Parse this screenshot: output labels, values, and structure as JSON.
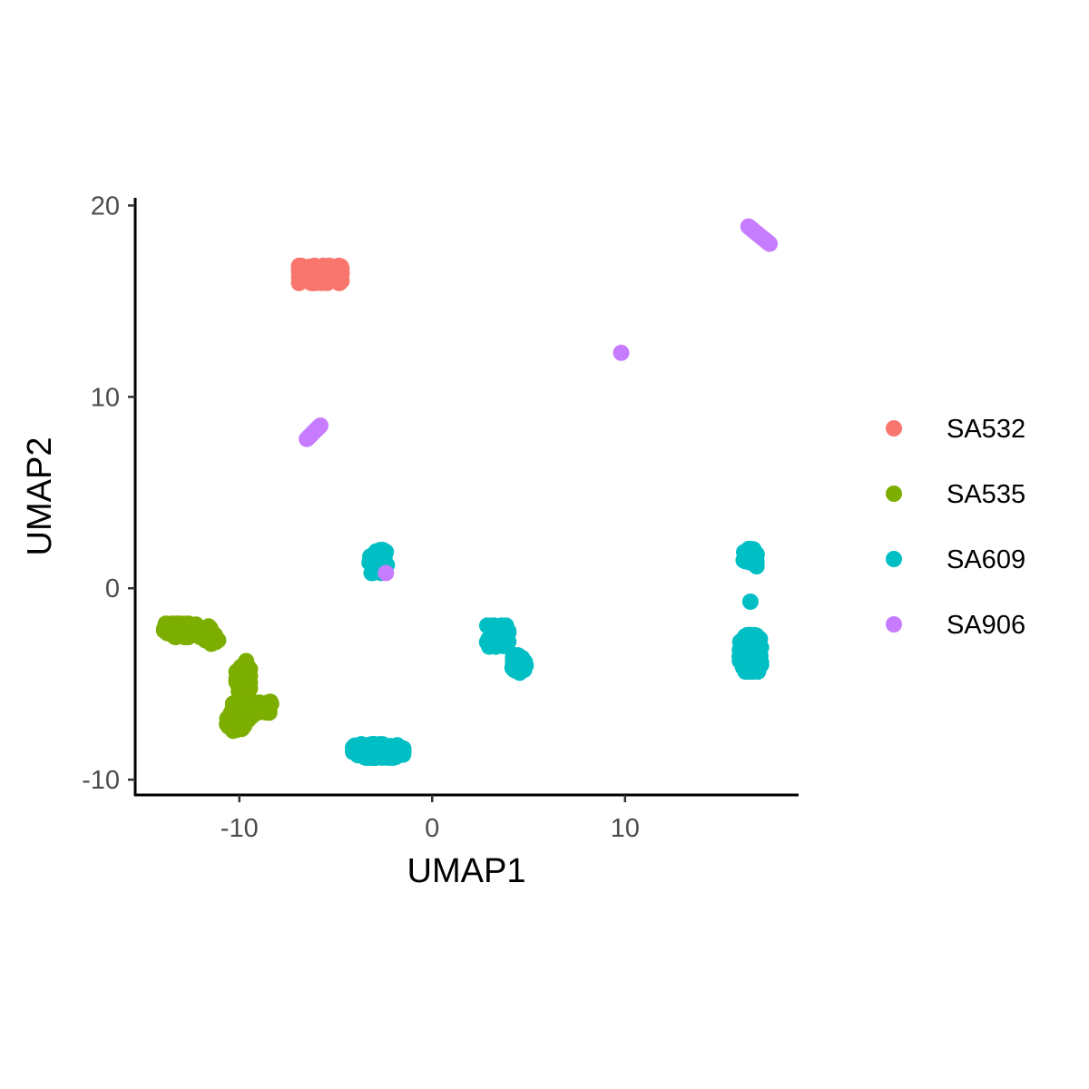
{
  "chart_data": {
    "type": "scatter",
    "title": "",
    "xlabel": "UMAP1",
    "ylabel": "UMAP2",
    "xlim": [
      -15.4,
      19
    ],
    "ylim": [
      -10.8,
      20.4
    ],
    "x_ticks": [
      -10,
      0,
      10
    ],
    "y_ticks": [
      -10,
      0,
      10,
      20
    ],
    "grid": false,
    "legend_position": "right",
    "series": [
      {
        "name": "SA532",
        "color": "#F8766D",
        "clusters": [
          {
            "x": -5.8,
            "y": 16.4,
            "sx": 1.1,
            "sy": 0.45,
            "n": 300
          }
        ]
      },
      {
        "name": "SA535",
        "color": "#7CAE00",
        "clusters": [
          {
            "x": -12.7,
            "y": -2.2,
            "sx": 1.2,
            "sy": 0.35,
            "n": 180
          },
          {
            "x": -11.5,
            "y": -2.6,
            "sx": 0.4,
            "sy": 0.3,
            "n": 40
          },
          {
            "x": -9.8,
            "y": -4.6,
            "sx": 0.35,
            "sy": 0.8,
            "n": 80
          },
          {
            "x": -9.9,
            "y": -6.5,
            "sx": 0.55,
            "sy": 0.55,
            "n": 120
          },
          {
            "x": -10.2,
            "y": -7.1,
            "sx": 0.45,
            "sy": 0.35,
            "n": 60
          },
          {
            "x": -8.8,
            "y": -6.2,
            "sx": 0.45,
            "sy": 0.3,
            "n": 50
          }
        ]
      },
      {
        "name": "SA609",
        "color": "#00BFC4",
        "clusters": [
          {
            "x": -2.8,
            "y": 1.4,
            "sx": 0.45,
            "sy": 0.6,
            "n": 100
          },
          {
            "x": 3.4,
            "y": -2.5,
            "sx": 0.55,
            "sy": 0.55,
            "n": 100
          },
          {
            "x": 4.5,
            "y": -4.0,
            "sx": 0.35,
            "sy": 0.5,
            "n": 60
          },
          {
            "x": -2.8,
            "y": -8.5,
            "sx": 1.3,
            "sy": 0.35,
            "n": 250
          },
          {
            "x": 16.5,
            "y": 1.6,
            "sx": 0.35,
            "sy": 0.45,
            "n": 60
          },
          {
            "x": 16.5,
            "y": -3.4,
            "sx": 0.55,
            "sy": 0.95,
            "n": 250
          }
        ],
        "points": [
          [
            16.5,
            -0.7
          ]
        ]
      },
      {
        "name": "SA906",
        "color": "#C77CFF",
        "segments": [
          {
            "from": [
              16.4,
              18.9
            ],
            "to": [
              17.5,
              18.0
            ],
            "n": 22
          },
          {
            "from": [
              -6.5,
              7.8
            ],
            "to": [
              -5.8,
              8.5
            ],
            "n": 14
          }
        ],
        "points": [
          [
            9.8,
            12.3
          ],
          [
            -2.4,
            0.8
          ]
        ]
      }
    ]
  }
}
